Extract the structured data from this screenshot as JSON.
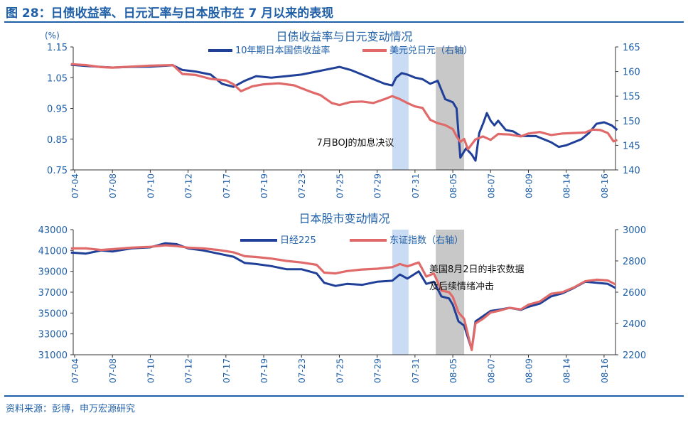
{
  "figure_title": "图 28：日债收益率、日元汇率与日本股市在 7 月以来的表现",
  "source_note": "资料来源：彭博，申万宏源研究",
  "colors": {
    "blue": "#1f3f98",
    "red": "#e06a6a",
    "accent": "#1f5fa8",
    "shade_blue": "#c9dcf3",
    "shade_gray": "#c8c8c8"
  },
  "chart_data": [
    {
      "type": "line",
      "title": "日债收益率与日元变动情况",
      "unit_label_left": "(%)",
      "y_left_ticks": [
        "1.15",
        "1.05",
        "0.95",
        "0.85",
        "0.75"
      ],
      "y_right_ticks": [
        "165",
        "160",
        "155",
        "150",
        "145",
        "140"
      ],
      "ylim_left": [
        0.75,
        1.15
      ],
      "ylim_right": [
        140,
        165
      ],
      "x_ticks": [
        "07-04",
        "07-08",
        "07-10",
        "07-12",
        "07-17",
        "07-19",
        "07-23",
        "07-25",
        "07-29",
        "07-31",
        "08-05",
        "08-07",
        "08-09",
        "08-14",
        "08-16"
      ],
      "shaded_spans": [
        {
          "from": 8.4,
          "to": 8.83,
          "color": "blue"
        },
        {
          "from": 9.55,
          "to": 10.3,
          "color": "gray"
        }
      ],
      "annotation": "7月BOJ的加息决议",
      "series": [
        {
          "name": "10年期日本国债收益率",
          "axis": "left",
          "color": "blue",
          "points": [
            [
              -0.1,
              1.092
            ],
            [
              0.3,
              1.088
            ],
            [
              0.7,
              1.085
            ],
            [
              1.0,
              1.083
            ],
            [
              1.5,
              1.085
            ],
            [
              2.0,
              1.086
            ],
            [
              2.6,
              1.09
            ],
            [
              2.85,
              1.075
            ],
            [
              3.2,
              1.07
            ],
            [
              3.6,
              1.06
            ],
            [
              3.9,
              1.03
            ],
            [
              4.2,
              1.02
            ],
            [
              4.5,
              1.04
            ],
            [
              4.8,
              1.055
            ],
            [
              5.2,
              1.05
            ],
            [
              5.6,
              1.055
            ],
            [
              6.0,
              1.06
            ],
            [
              6.4,
              1.07
            ],
            [
              6.8,
              1.08
            ],
            [
              7.0,
              1.085
            ],
            [
              7.3,
              1.075
            ],
            [
              7.6,
              1.06
            ],
            [
              7.9,
              1.045
            ],
            [
              8.2,
              1.03
            ],
            [
              8.4,
              1.025
            ],
            [
              8.5,
              1.05
            ],
            [
              8.65,
              1.065
            ],
            [
              8.8,
              1.06
            ],
            [
              9.0,
              1.05
            ],
            [
              9.2,
              1.045
            ],
            [
              9.4,
              1.03
            ],
            [
              9.6,
              1.04
            ],
            [
              9.8,
              0.98
            ],
            [
              10.0,
              0.97
            ],
            [
              10.1,
              0.95
            ],
            [
              10.2,
              0.79
            ],
            [
              10.35,
              0.82
            ],
            [
              10.5,
              0.8
            ],
            [
              10.6,
              0.78
            ],
            [
              10.7,
              0.87
            ],
            [
              10.8,
              0.9
            ],
            [
              10.9,
              0.935
            ],
            [
              11.0,
              0.91
            ],
            [
              11.1,
              0.895
            ],
            [
              11.2,
              0.91
            ],
            [
              11.4,
              0.88
            ],
            [
              11.6,
              0.875
            ],
            [
              11.8,
              0.86
            ],
            [
              12.0,
              0.86
            ],
            [
              12.2,
              0.86
            ],
            [
              12.4,
              0.85
            ],
            [
              12.6,
              0.84
            ],
            [
              12.8,
              0.825
            ],
            [
              13.0,
              0.83
            ],
            [
              13.2,
              0.84
            ],
            [
              13.4,
              0.85
            ],
            [
              13.6,
              0.87
            ],
            [
              13.8,
              0.9
            ],
            [
              14.0,
              0.905
            ],
            [
              14.2,
              0.895
            ],
            [
              14.35,
              0.88
            ]
          ]
        },
        {
          "name": "美元兑日元（右轴）",
          "axis": "right",
          "color": "red",
          "points": [
            [
              -0.1,
              161.5
            ],
            [
              0.3,
              161.3
            ],
            [
              0.7,
              160.9
            ],
            [
              1.0,
              160.8
            ],
            [
              1.5,
              161.0
            ],
            [
              2.0,
              161.2
            ],
            [
              2.6,
              161.3
            ],
            [
              2.85,
              159.5
            ],
            [
              3.2,
              159.3
            ],
            [
              3.6,
              158.5
            ],
            [
              4.0,
              158.2
            ],
            [
              4.2,
              157.4
            ],
            [
              4.4,
              156.0
            ],
            [
              4.7,
              157.0
            ],
            [
              5.0,
              157.4
            ],
            [
              5.4,
              157.6
            ],
            [
              5.8,
              157.2
            ],
            [
              6.2,
              156.0
            ],
            [
              6.5,
              155.2
            ],
            [
              6.8,
              153.6
            ],
            [
              7.0,
              153.2
            ],
            [
              7.3,
              153.8
            ],
            [
              7.6,
              153.9
            ],
            [
              7.9,
              153.6
            ],
            [
              8.2,
              154.4
            ],
            [
              8.4,
              155.0
            ],
            [
              8.6,
              154.4
            ],
            [
              8.8,
              153.6
            ],
            [
              9.0,
              152.9
            ],
            [
              9.2,
              152.6
            ],
            [
              9.4,
              150.2
            ],
            [
              9.6,
              149.5
            ],
            [
              9.8,
              149.1
            ],
            [
              10.0,
              148.3
            ],
            [
              10.1,
              146.8
            ],
            [
              10.2,
              145.7
            ],
            [
              10.3,
              146.3
            ],
            [
              10.4,
              144.2
            ],
            [
              10.6,
              146.2
            ],
            [
              10.8,
              146.8
            ],
            [
              11.0,
              146.1
            ],
            [
              11.2,
              147.3
            ],
            [
              11.5,
              147.2
            ],
            [
              11.8,
              146.8
            ],
            [
              12.0,
              147.4
            ],
            [
              12.3,
              147.7
            ],
            [
              12.6,
              147.1
            ],
            [
              12.9,
              147.4
            ],
            [
              13.2,
              147.5
            ],
            [
              13.5,
              147.6
            ],
            [
              13.7,
              148.2
            ],
            [
              13.9,
              148.1
            ],
            [
              14.1,
              147.5
            ],
            [
              14.25,
              145.8
            ],
            [
              14.35,
              146.1
            ]
          ]
        }
      ]
    },
    {
      "type": "line",
      "title": "日本股市变动情况",
      "y_left_ticks": [
        "43000",
        "41000",
        "39000",
        "37000",
        "35000",
        "33000",
        "31000"
      ],
      "y_right_ticks": [
        "3000",
        "2800",
        "2600",
        "2400",
        "2200"
      ],
      "ylim_left": [
        31000,
        43000
      ],
      "ylim_right": [
        2200,
        3000
      ],
      "x_ticks": [
        "07-04",
        "07-08",
        "07-10",
        "07-12",
        "07-17",
        "07-19",
        "07-23",
        "07-25",
        "07-29",
        "07-31",
        "08-05",
        "08-07",
        "08-09",
        "08-14",
        "08-16"
      ],
      "shaded_spans": [
        {
          "from": 8.4,
          "to": 8.83,
          "color": "blue"
        },
        {
          "from": 9.55,
          "to": 10.3,
          "color": "gray"
        }
      ],
      "annotation_lines": [
        "美国8月2日的非农数据",
        "及后续情绪冲击"
      ],
      "series": [
        {
          "name": "日经225",
          "axis": "left",
          "color": "blue",
          "points": [
            [
              -0.1,
              40800
            ],
            [
              0.3,
              40700
            ],
            [
              0.7,
              41000
            ],
            [
              1.0,
              40900
            ],
            [
              1.5,
              41200
            ],
            [
              2.0,
              41300
            ],
            [
              2.4,
              41700
            ],
            [
              2.7,
              41600
            ],
            [
              3.0,
              41200
            ],
            [
              3.4,
              41000
            ],
            [
              3.8,
              40700
            ],
            [
              4.2,
              40400
            ],
            [
              4.5,
              39800
            ],
            [
              4.8,
              39700
            ],
            [
              5.2,
              39500
            ],
            [
              5.6,
              39200
            ],
            [
              6.0,
              39200
            ],
            [
              6.4,
              38800
            ],
            [
              6.6,
              37900
            ],
            [
              6.9,
              37600
            ],
            [
              7.2,
              37800
            ],
            [
              7.6,
              37700
            ],
            [
              8.0,
              38000
            ],
            [
              8.4,
              38100
            ],
            [
              8.6,
              38700
            ],
            [
              8.8,
              38300
            ],
            [
              9.1,
              39000
            ],
            [
              9.3,
              37800
            ],
            [
              9.5,
              38000
            ],
            [
              9.7,
              36600
            ],
            [
              9.9,
              36400
            ],
            [
              10.0,
              35800
            ],
            [
              10.15,
              34200
            ],
            [
              10.3,
              33800
            ],
            [
              10.5,
              31500
            ],
            [
              10.6,
              34200
            ],
            [
              10.8,
              34700
            ],
            [
              11.0,
              35200
            ],
            [
              11.2,
              35300
            ],
            [
              11.5,
              35500
            ],
            [
              11.8,
              35300
            ],
            [
              12.0,
              35600
            ],
            [
              12.3,
              35900
            ],
            [
              12.6,
              36600
            ],
            [
              12.9,
              36900
            ],
            [
              13.2,
              37400
            ],
            [
              13.5,
              38000
            ],
            [
              13.8,
              37900
            ],
            [
              14.1,
              37800
            ],
            [
              14.3,
              37400
            ]
          ]
        },
        {
          "name": "东证指数（右轴）",
          "axis": "right",
          "color": "red",
          "points": [
            [
              -0.1,
              2880
            ],
            [
              0.3,
              2880
            ],
            [
              0.7,
              2870
            ],
            [
              1.0,
              2875
            ],
            [
              1.5,
              2885
            ],
            [
              2.0,
              2890
            ],
            [
              2.4,
              2900
            ],
            [
              2.7,
              2895
            ],
            [
              3.0,
              2885
            ],
            [
              3.4,
              2880
            ],
            [
              3.8,
              2870
            ],
            [
              4.2,
              2855
            ],
            [
              4.5,
              2830
            ],
            [
              4.8,
              2825
            ],
            [
              5.2,
              2815
            ],
            [
              5.6,
              2800
            ],
            [
              6.0,
              2790
            ],
            [
              6.4,
              2775
            ],
            [
              6.6,
              2725
            ],
            [
              6.9,
              2720
            ],
            [
              7.2,
              2735
            ],
            [
              7.6,
              2745
            ],
            [
              8.0,
              2750
            ],
            [
              8.4,
              2760
            ],
            [
              8.6,
              2780
            ],
            [
              8.8,
              2765
            ],
            [
              9.1,
              2790
            ],
            [
              9.3,
              2700
            ],
            [
              9.5,
              2720
            ],
            [
              9.7,
              2610
            ],
            [
              9.9,
              2600
            ],
            [
              10.0,
              2570
            ],
            [
              10.15,
              2470
            ],
            [
              10.3,
              2430
            ],
            [
              10.5,
              2230
            ],
            [
              10.6,
              2400
            ],
            [
              10.8,
              2430
            ],
            [
              11.0,
              2470
            ],
            [
              11.2,
              2480
            ],
            [
              11.5,
              2500
            ],
            [
              11.8,
              2490
            ],
            [
              12.0,
              2520
            ],
            [
              12.3,
              2540
            ],
            [
              12.6,
              2590
            ],
            [
              12.9,
              2600
            ],
            [
              13.2,
              2630
            ],
            [
              13.5,
              2670
            ],
            [
              13.8,
              2680
            ],
            [
              14.1,
              2675
            ],
            [
              14.3,
              2650
            ]
          ]
        }
      ]
    }
  ]
}
